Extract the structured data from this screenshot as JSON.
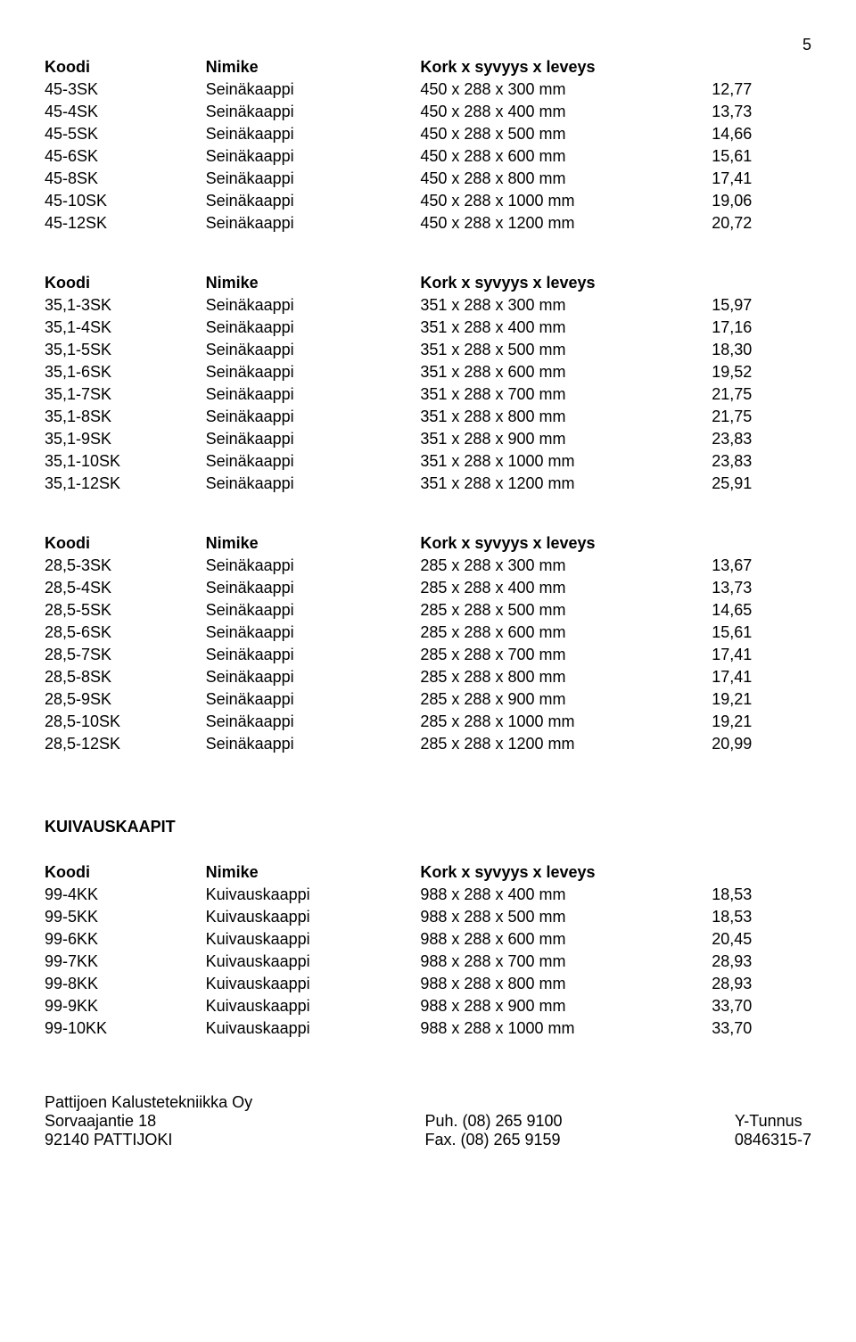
{
  "page_number": "5",
  "header": {
    "code": "Koodi",
    "name": "Nimike",
    "dims": "Kork x syvyys x leveys"
  },
  "group0": [
    {
      "code": "45-3SK",
      "name": "Seinäkaappi",
      "dims": "450 x 288 x 300 mm",
      "price": "12,77"
    },
    {
      "code": "45-4SK",
      "name": "Seinäkaappi",
      "dims": "450 x 288 x 400 mm",
      "price": "13,73"
    },
    {
      "code": "45-5SK",
      "name": "Seinäkaappi",
      "dims": "450 x 288 x 500 mm",
      "price": "14,66"
    },
    {
      "code": "45-6SK",
      "name": "Seinäkaappi",
      "dims": "450 x 288 x 600 mm",
      "price": "15,61"
    },
    {
      "code": "45-8SK",
      "name": "Seinäkaappi",
      "dims": "450 x 288 x 800 mm",
      "price": "17,41"
    },
    {
      "code": "45-10SK",
      "name": "Seinäkaappi",
      "dims": "450 x 288 x 1000 mm",
      "price": "19,06"
    },
    {
      "code": "45-12SK",
      "name": "Seinäkaappi",
      "dims": "450 x 288 x 1200 mm",
      "price": "20,72"
    }
  ],
  "group1": [
    {
      "code": "35,1-3SK",
      "name": "Seinäkaappi",
      "dims": "351 x 288 x 300 mm",
      "price": "15,97"
    },
    {
      "code": "35,1-4SK",
      "name": "Seinäkaappi",
      "dims": "351 x 288 x 400 mm",
      "price": "17,16"
    },
    {
      "code": "35,1-5SK",
      "name": "Seinäkaappi",
      "dims": "351 x 288 x 500 mm",
      "price": "18,30"
    },
    {
      "code": "35,1-6SK",
      "name": "Seinäkaappi",
      "dims": "351 x 288 x 600 mm",
      "price": "19,52"
    },
    {
      "code": "35,1-7SK",
      "name": "Seinäkaappi",
      "dims": "351 x 288 x 700 mm",
      "price": "21,75"
    },
    {
      "code": "35,1-8SK",
      "name": "Seinäkaappi",
      "dims": "351 x 288 x 800 mm",
      "price": "21,75"
    },
    {
      "code": "35,1-9SK",
      "name": "Seinäkaappi",
      "dims": "351 x 288 x 900 mm",
      "price": "23,83"
    },
    {
      "code": "35,1-10SK",
      "name": "Seinäkaappi",
      "dims": "351 x 288 x 1000 mm",
      "price": "23,83"
    },
    {
      "code": "35,1-12SK",
      "name": "Seinäkaappi",
      "dims": "351 x 288 x 1200 mm",
      "price": "25,91"
    }
  ],
  "group2": [
    {
      "code": "28,5-3SK",
      "name": "Seinäkaappi",
      "dims": "285 x 288 x 300 mm",
      "price": "13,67"
    },
    {
      "code": "28,5-4SK",
      "name": "Seinäkaappi",
      "dims": "285 x 288 x 400 mm",
      "price": "13,73"
    },
    {
      "code": "28,5-5SK",
      "name": "Seinäkaappi",
      "dims": "285 x 288 x 500 mm",
      "price": "14,65"
    },
    {
      "code": "28,5-6SK",
      "name": "Seinäkaappi",
      "dims": "285 x 288 x 600 mm",
      "price": "15,61"
    },
    {
      "code": "28,5-7SK",
      "name": "Seinäkaappi",
      "dims": "285 x 288 x 700 mm",
      "price": "17,41"
    },
    {
      "code": "28,5-8SK",
      "name": "Seinäkaappi",
      "dims": "285 x 288 x 800 mm",
      "price": "17,41"
    },
    {
      "code": "28,5-9SK",
      "name": "Seinäkaappi",
      "dims": "285 x 288 x 900 mm",
      "price": "19,21"
    },
    {
      "code": "28,5-10SK",
      "name": "Seinäkaappi",
      "dims": "285 x 288 x 1000 mm",
      "price": "19,21"
    },
    {
      "code": "28,5-12SK",
      "name": "Seinäkaappi",
      "dims": "285 x 288 x 1200 mm",
      "price": "20,99"
    }
  ],
  "section2_title": "KUIVAUSKAAPIT",
  "group3": [
    {
      "code": "99-4KK",
      "name": "Kuivauskaappi",
      "dims": "988 x 288 x 400 mm",
      "price": "18,53"
    },
    {
      "code": "99-5KK",
      "name": "Kuivauskaappi",
      "dims": "988 x 288 x 500 mm",
      "price": "18,53"
    },
    {
      "code": "99-6KK",
      "name": "Kuivauskaappi",
      "dims": "988 x 288 x 600 mm",
      "price": "20,45"
    },
    {
      "code": "99-7KK",
      "name": "Kuivauskaappi",
      "dims": "988 x 288 x 700 mm",
      "price": "28,93"
    },
    {
      "code": "99-8KK",
      "name": "Kuivauskaappi",
      "dims": "988 x 288 x 800 mm",
      "price": "28,93"
    },
    {
      "code": "99-9KK",
      "name": "Kuivauskaappi",
      "dims": "988 x 288 x 900 mm",
      "price": "33,70"
    },
    {
      "code": "99-10KK",
      "name": "Kuivauskaappi",
      "dims": "988 x 288 x 1000 mm",
      "price": "33,70"
    }
  ],
  "footer": {
    "left1": "Pattijoen Kalustetekniikka Oy",
    "left2": "Sorvaajantie 18",
    "left3": "92140  PATTIJOKI",
    "mid2": "Puh. (08) 265 9100",
    "mid3": "Fax. (08) 265 9159",
    "right2": "Y-Tunnus",
    "right3": "0846315-7"
  }
}
